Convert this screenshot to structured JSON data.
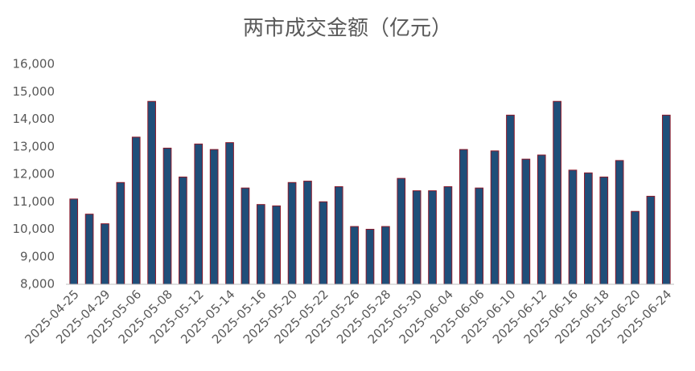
{
  "chart_data": {
    "type": "bar",
    "title": "两市成交金额（亿元）",
    "categories": [
      "2025-04-25",
      null,
      "2025-04-29",
      null,
      "2025-05-06",
      null,
      "2025-05-08",
      null,
      "2025-05-12",
      null,
      "2025-05-14",
      null,
      "2025-05-16",
      null,
      "2025-05-20",
      null,
      "2025-05-22",
      null,
      "2025-05-26",
      null,
      "2025-05-28",
      null,
      "2025-05-30",
      null,
      "2025-06-04",
      null,
      "2025-06-06",
      null,
      "2025-06-10",
      null,
      "2025-06-12",
      null,
      "2025-06-16",
      null,
      "2025-06-18",
      null,
      "2025-06-20",
      null,
      "2025-06-24"
    ],
    "values": [
      11100,
      10550,
      10200,
      11700,
      13350,
      14650,
      12950,
      11900,
      13100,
      12900,
      13150,
      11500,
      10900,
      10850,
      11700,
      11750,
      11000,
      11550,
      10100,
      10000,
      10100,
      11850,
      11400,
      11400,
      11550,
      12900,
      11500,
      12850,
      14150,
      12550,
      12700,
      14650,
      12150,
      12050,
      11900,
      12500,
      10650,
      11200,
      14150
    ],
    "color": "#1f4e79",
    "edge_color": "#8b1a2b",
    "ylim": [
      8000,
      16000
    ],
    "yticks": [
      {
        "value": 8000,
        "label": "8,000"
      },
      {
        "value": 9000,
        "label": "9,000"
      },
      {
        "value": 10000,
        "label": "10,000"
      },
      {
        "value": 11000,
        "label": "11,000"
      },
      {
        "value": 12000,
        "label": "12,000"
      },
      {
        "value": 13000,
        "label": "13,000"
      },
      {
        "value": 14000,
        "label": "14,000"
      },
      {
        "value": 15000,
        "label": "15,000"
      },
      {
        "value": 16000,
        "label": "16,000"
      }
    ]
  }
}
